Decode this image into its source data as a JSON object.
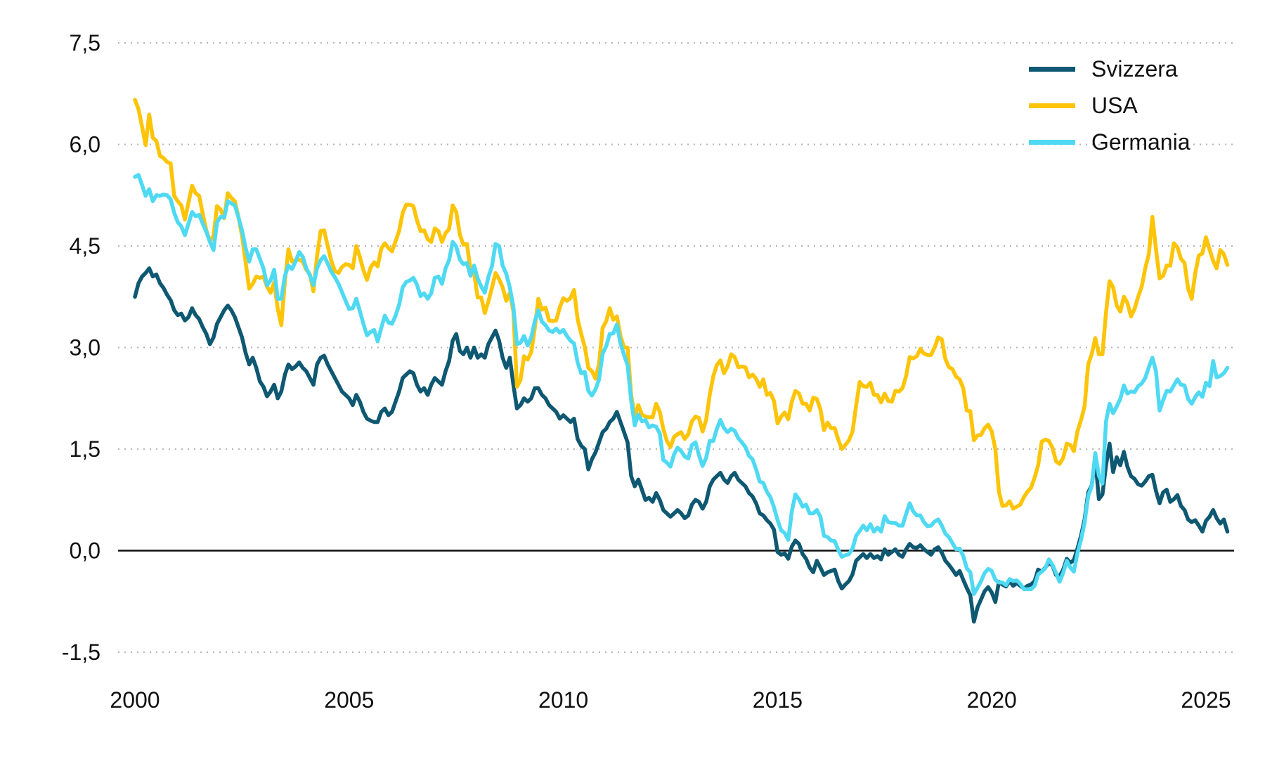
{
  "chart_data": {
    "type": "line",
    "title": "",
    "subtitle": "",
    "background": "#ffffff",
    "grid": {
      "style": "dotted",
      "color": "#b5b5b5",
      "zero_line_color": "#111111"
    },
    "x_axis": {
      "label": "",
      "tick_labels": [
        "2000",
        "2005",
        "2010",
        "2015",
        "2020",
        "2025"
      ],
      "tick_years": [
        2000,
        2005,
        2010,
        2015,
        2020,
        2025
      ],
      "range": [
        2000,
        2025.6
      ]
    },
    "y_axis": {
      "label": "",
      "decimal_separator": ",",
      "range": [
        -1.5,
        7.5
      ],
      "ticks": [
        {
          "value": 7.5,
          "label": "7,5"
        },
        {
          "value": 6.0,
          "label": "6,0"
        },
        {
          "value": 4.5,
          "label": "4,5"
        },
        {
          "value": 3.0,
          "label": "3,0"
        },
        {
          "value": 1.5,
          "label": "1,5"
        },
        {
          "value": 0.0,
          "label": "0,0"
        },
        {
          "value": -1.5,
          "label": "-1,5"
        }
      ],
      "zero_line_value": 0
    },
    "legend": {
      "position": "top-right"
    },
    "frequency": "monthly",
    "start": "2000-01",
    "end": "2025-07",
    "series": [
      {
        "name": "Svizzera",
        "color": "#0e5872",
        "values": [
          3.75,
          3.95,
          4.05,
          4.1,
          4.17,
          4.05,
          4.08,
          3.95,
          3.88,
          3.78,
          3.7,
          3.55,
          3.48,
          3.5,
          3.4,
          3.45,
          3.58,
          3.48,
          3.42,
          3.3,
          3.2,
          3.05,
          3.15,
          3.35,
          3.45,
          3.55,
          3.62,
          3.55,
          3.45,
          3.3,
          3.15,
          2.92,
          2.75,
          2.85,
          2.7,
          2.5,
          2.42,
          2.28,
          2.35,
          2.45,
          2.25,
          2.35,
          2.6,
          2.75,
          2.68,
          2.72,
          2.78,
          2.7,
          2.65,
          2.55,
          2.45,
          2.75,
          2.85,
          2.88,
          2.75,
          2.65,
          2.55,
          2.45,
          2.35,
          2.3,
          2.25,
          2.15,
          2.3,
          2.2,
          2.05,
          1.95,
          1.92,
          1.9,
          1.9,
          2.05,
          2.1,
          2.0,
          2.05,
          2.2,
          2.35,
          2.55,
          2.6,
          2.65,
          2.62,
          2.45,
          2.35,
          2.4,
          2.3,
          2.45,
          2.55,
          2.5,
          2.45,
          2.65,
          2.8,
          3.1,
          3.2,
          2.95,
          2.9,
          3.0,
          2.85,
          3.0,
          2.85,
          2.9,
          2.85,
          3.05,
          3.15,
          3.25,
          3.1,
          2.85,
          2.7,
          2.85,
          2.45,
          2.1,
          2.15,
          2.25,
          2.2,
          2.25,
          2.4,
          2.4,
          2.3,
          2.25,
          2.15,
          2.1,
          2.05,
          1.95,
          2.0,
          1.95,
          1.9,
          1.95,
          1.65,
          1.55,
          1.5,
          1.2,
          1.35,
          1.45,
          1.6,
          1.75,
          1.8,
          1.9,
          1.95,
          2.05,
          1.9,
          1.75,
          1.6,
          1.1,
          0.95,
          1.05,
          0.9,
          0.75,
          0.78,
          0.72,
          0.85,
          0.75,
          0.6,
          0.55,
          0.5,
          0.55,
          0.6,
          0.55,
          0.48,
          0.52,
          0.68,
          0.75,
          0.72,
          0.62,
          0.72,
          0.95,
          1.05,
          1.1,
          1.15,
          1.05,
          1.0,
          1.1,
          1.15,
          1.05,
          1.0,
          0.95,
          0.85,
          0.8,
          0.7,
          0.55,
          0.52,
          0.45,
          0.4,
          0.31,
          -0.02,
          -0.06,
          -0.04,
          -0.12,
          0.06,
          0.15,
          0.1,
          -0.05,
          -0.12,
          -0.25,
          -0.32,
          -0.15,
          -0.25,
          -0.36,
          -0.32,
          -0.3,
          -0.28,
          -0.45,
          -0.56,
          -0.5,
          -0.45,
          -0.35,
          -0.15,
          -0.1,
          -0.05,
          -0.11,
          -0.05,
          -0.11,
          -0.08,
          -0.13,
          0.02,
          -0.06,
          -0.02,
          0.02,
          -0.06,
          -0.09,
          0.02,
          0.1,
          0.05,
          0.04,
          0.08,
          0.02,
          -0.02,
          -0.06,
          0.02,
          0.05,
          -0.03,
          -0.15,
          -0.21,
          -0.28,
          -0.36,
          -0.3,
          -0.43,
          -0.55,
          -0.66,
          -1.05,
          -0.84,
          -0.72,
          -0.6,
          -0.54,
          -0.62,
          -0.76,
          -0.46,
          -0.5,
          -0.53,
          -0.45,
          -0.52,
          -0.48,
          -0.52,
          -0.56,
          -0.52,
          -0.5,
          -0.45,
          -0.28,
          -0.31,
          -0.25,
          -0.18,
          -0.22,
          -0.36,
          -0.38,
          -0.28,
          -0.12,
          -0.18,
          -0.14,
          0.03,
          0.22,
          0.46,
          0.86,
          0.96,
          1.36,
          0.76,
          0.83,
          1.26,
          1.58,
          1.16,
          1.38,
          1.26,
          1.46,
          1.24,
          1.1,
          1.06,
          0.98,
          0.96,
          1.02,
          1.1,
          1.12,
          0.88,
          0.7,
          0.86,
          0.9,
          0.72,
          0.76,
          0.82,
          0.66,
          0.6,
          0.46,
          0.42,
          0.45,
          0.37,
          0.28,
          0.44,
          0.5,
          0.6,
          0.48,
          0.4,
          0.46,
          0.28
        ]
      },
      {
        "name": "USA",
        "color": "#fdc408",
        "values": [
          6.66,
          6.52,
          6.26,
          5.99,
          6.44,
          6.1,
          6.05,
          5.83,
          5.8,
          5.74,
          5.72,
          5.24,
          5.16,
          5.1,
          4.89,
          5.14,
          5.39,
          5.28,
          5.24,
          4.97,
          4.73,
          4.57,
          4.65,
          5.09,
          5.04,
          4.91,
          5.28,
          5.21,
          5.16,
          4.93,
          4.65,
          4.26,
          3.87,
          3.94,
          4.05,
          4.03,
          4.05,
          3.9,
          3.81,
          3.96,
          3.57,
          3.33,
          3.98,
          4.45,
          4.27,
          4.29,
          4.3,
          4.27,
          4.15,
          4.08,
          3.83,
          4.35,
          4.72,
          4.73,
          4.5,
          4.28,
          4.13,
          4.1,
          4.19,
          4.23,
          4.22,
          4.17,
          4.5,
          4.34,
          4.14,
          4.0,
          4.18,
          4.26,
          4.2,
          4.46,
          4.54,
          4.47,
          4.42,
          4.57,
          4.72,
          4.99,
          5.11,
          5.11,
          5.09,
          4.88,
          4.72,
          4.73,
          4.6,
          4.56,
          4.76,
          4.72,
          4.56,
          4.69,
          4.75,
          5.1,
          5.0,
          4.67,
          4.52,
          4.53,
          4.15,
          4.1,
          3.74,
          3.74,
          3.51,
          3.68,
          3.88,
          4.1,
          4.01,
          3.89,
          3.69,
          3.81,
          3.53,
          2.42,
          2.52,
          2.87,
          2.82,
          2.93,
          3.29,
          3.72,
          3.56,
          3.59,
          3.4,
          3.39,
          3.4,
          3.59,
          3.73,
          3.69,
          3.73,
          3.85,
          3.42,
          3.2,
          3.01,
          2.7,
          2.65,
          2.54,
          2.76,
          3.29,
          3.39,
          3.58,
          3.41,
          3.46,
          3.17,
          3.0,
          3.0,
          2.3,
          1.98,
          2.15,
          2.01,
          1.98,
          1.97,
          1.97,
          2.17,
          2.05,
          1.8,
          1.62,
          1.53,
          1.68,
          1.72,
          1.75,
          1.65,
          1.72,
          1.91,
          1.98,
          1.96,
          1.76,
          1.93,
          2.3,
          2.58,
          2.74,
          2.81,
          2.62,
          2.72,
          2.9,
          2.86,
          2.71,
          2.72,
          2.71,
          2.56,
          2.6,
          2.54,
          2.42,
          2.53,
          2.3,
          2.33,
          2.21,
          1.88,
          1.98,
          2.04,
          1.94,
          2.2,
          2.36,
          2.32,
          2.17,
          2.17,
          2.07,
          2.26,
          2.24,
          2.09,
          1.78,
          1.89,
          1.81,
          1.81,
          1.64,
          1.5,
          1.56,
          1.63,
          1.76,
          2.14,
          2.49,
          2.43,
          2.42,
          2.48,
          2.3,
          2.3,
          2.19,
          2.32,
          2.21,
          2.2,
          2.36,
          2.35,
          2.4,
          2.58,
          2.86,
          2.84,
          2.87,
          2.98,
          2.91,
          2.89,
          2.89,
          3.0,
          3.15,
          3.12,
          2.83,
          2.71,
          2.68,
          2.57,
          2.53,
          2.4,
          2.07,
          2.06,
          1.63,
          1.7,
          1.71,
          1.81,
          1.86,
          1.76,
          1.5,
          0.87,
          0.66,
          0.67,
          0.73,
          0.62,
          0.65,
          0.68,
          0.79,
          0.87,
          0.93,
          1.08,
          1.26,
          1.61,
          1.64,
          1.62,
          1.52,
          1.32,
          1.28,
          1.37,
          1.58,
          1.56,
          1.47,
          1.76,
          1.93,
          2.13,
          2.75,
          2.9,
          3.14,
          2.9,
          2.9,
          3.52,
          3.98,
          3.89,
          3.62,
          3.53,
          3.75,
          3.66,
          3.46,
          3.57,
          3.75,
          3.9,
          4.17,
          4.38,
          4.93,
          4.45,
          4.02,
          4.06,
          4.21,
          4.21,
          4.54,
          4.48,
          4.31,
          4.25,
          3.87,
          3.72,
          4.1,
          4.36,
          4.39,
          4.63,
          4.45,
          4.28,
          4.17,
          4.44,
          4.38,
          4.22
        ]
      },
      {
        "name": "Germania",
        "color": "#4fd9f2",
        "values": [
          5.52,
          5.55,
          5.4,
          5.24,
          5.34,
          5.16,
          5.25,
          5.24,
          5.26,
          5.25,
          5.19,
          4.99,
          4.85,
          4.79,
          4.66,
          4.83,
          5.0,
          4.94,
          4.96,
          4.83,
          4.71,
          4.56,
          4.44,
          4.85,
          4.93,
          4.92,
          5.16,
          5.13,
          5.1,
          4.92,
          4.73,
          4.47,
          4.27,
          4.45,
          4.45,
          4.31,
          4.17,
          3.92,
          3.99,
          4.15,
          3.72,
          3.72,
          4.06,
          4.21,
          4.16,
          4.27,
          4.41,
          4.34,
          4.17,
          4.07,
          3.92,
          4.17,
          4.29,
          4.35,
          4.24,
          4.12,
          4.04,
          3.94,
          3.82,
          3.69,
          3.57,
          3.58,
          3.72,
          3.54,
          3.35,
          3.18,
          3.23,
          3.26,
          3.09,
          3.29,
          3.47,
          3.37,
          3.35,
          3.47,
          3.63,
          3.89,
          3.97,
          3.99,
          4.03,
          3.93,
          3.76,
          3.8,
          3.72,
          3.8,
          4.03,
          4.05,
          3.94,
          4.17,
          4.29,
          4.56,
          4.49,
          4.3,
          4.23,
          4.25,
          4.06,
          4.21,
          4.02,
          3.9,
          3.81,
          4.04,
          4.2,
          4.53,
          4.5,
          4.21,
          4.09,
          3.89,
          3.6,
          3.05,
          3.07,
          3.17,
          3.03,
          3.15,
          3.39,
          3.55,
          3.38,
          3.33,
          3.25,
          3.23,
          3.28,
          3.22,
          3.26,
          3.17,
          3.1,
          3.06,
          2.78,
          2.62,
          2.64,
          2.36,
          2.29,
          2.38,
          2.53,
          2.91,
          3.02,
          3.2,
          3.21,
          3.34,
          3.06,
          2.89,
          2.74,
          2.22,
          1.85,
          2.01,
          1.91,
          1.93,
          1.82,
          1.85,
          1.83,
          1.73,
          1.34,
          1.3,
          1.24,
          1.42,
          1.52,
          1.47,
          1.39,
          1.36,
          1.56,
          1.6,
          1.41,
          1.25,
          1.37,
          1.62,
          1.62,
          1.8,
          1.93,
          1.81,
          1.75,
          1.8,
          1.77,
          1.66,
          1.6,
          1.53,
          1.4,
          1.35,
          1.2,
          1.02,
          1.0,
          0.87,
          0.79,
          0.64,
          0.45,
          0.3,
          0.26,
          0.16,
          0.58,
          0.83,
          0.76,
          0.65,
          0.68,
          0.55,
          0.55,
          0.6,
          0.5,
          0.22,
          0.2,
          0.15,
          0.14,
          0.01,
          -0.09,
          -0.07,
          -0.05,
          0.03,
          0.22,
          0.29,
          0.37,
          0.3,
          0.39,
          0.28,
          0.34,
          0.28,
          0.51,
          0.42,
          0.41,
          0.41,
          0.37,
          0.37,
          0.54,
          0.7,
          0.58,
          0.52,
          0.52,
          0.42,
          0.36,
          0.37,
          0.43,
          0.46,
          0.37,
          0.25,
          0.2,
          0.11,
          0.02,
          0.03,
          -0.08,
          -0.26,
          -0.32,
          -0.64,
          -0.55,
          -0.45,
          -0.33,
          -0.27,
          -0.3,
          -0.43,
          -0.47,
          -0.47,
          -0.51,
          -0.42,
          -0.45,
          -0.44,
          -0.49,
          -0.57,
          -0.57,
          -0.57,
          -0.52,
          -0.35,
          -0.31,
          -0.26,
          -0.13,
          -0.21,
          -0.33,
          -0.46,
          -0.33,
          -0.15,
          -0.25,
          -0.31,
          -0.04,
          0.16,
          0.41,
          0.81,
          0.95,
          1.44,
          1.11,
          0.99,
          1.91,
          2.17,
          2.03,
          2.13,
          2.24,
          2.44,
          2.32,
          2.35,
          2.34,
          2.43,
          2.47,
          2.55,
          2.71,
          2.85,
          2.65,
          2.07,
          2.22,
          2.36,
          2.35,
          2.44,
          2.53,
          2.45,
          2.44,
          2.24,
          2.17,
          2.27,
          2.34,
          2.27,
          2.48,
          2.43,
          2.8,
          2.56,
          2.58,
          2.62,
          2.7
        ]
      }
    ]
  }
}
